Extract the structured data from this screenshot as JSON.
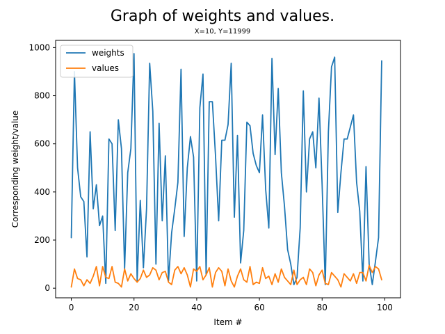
{
  "chart_data": {
    "type": "line",
    "title": "Graph of weights and values.",
    "subtitle": "X=10, Y=11999",
    "xlabel": "Item #",
    "ylabel": "Corresponding weight/value",
    "xlim": [
      -5,
      105
    ],
    "ylim": [
      -40,
      1030
    ],
    "xticks": [
      0,
      20,
      40,
      60,
      80,
      100
    ],
    "yticks": [
      0,
      200,
      400,
      600,
      800,
      1000
    ],
    "grid": false,
    "legend_position": "top-left",
    "series": [
      {
        "name": "weights",
        "color": "#1f77b4",
        "values": [
          210,
          900,
          500,
          380,
          360,
          130,
          650,
          330,
          430,
          260,
          300,
          20,
          620,
          600,
          240,
          700,
          580,
          80,
          480,
          580,
          975,
          30,
          365,
          85,
          330,
          935,
          735,
          100,
          685,
          280,
          550,
          30,
          230,
          330,
          440,
          910,
          215,
          500,
          630,
          545,
          30,
          750,
          890,
          55,
          775,
          775,
          550,
          280,
          615,
          615,
          680,
          935,
          295,
          635,
          105,
          240,
          690,
          675,
          560,
          510,
          480,
          720,
          410,
          250,
          955,
          555,
          830,
          480,
          340,
          160,
          100,
          15,
          45,
          250,
          820,
          400,
          620,
          650,
          500,
          790,
          430,
          15,
          650,
          920,
          960,
          315,
          480,
          620,
          620,
          670,
          720,
          440,
          320,
          30,
          505,
          100,
          15,
          110,
          210,
          945
        ]
      },
      {
        "name": "values",
        "color": "#ff7f0e",
        "values": [
          5,
          80,
          40,
          35,
          10,
          35,
          20,
          50,
          90,
          10,
          90,
          45,
          40,
          90,
          25,
          20,
          5,
          80,
          30,
          60,
          40,
          25,
          40,
          75,
          45,
          55,
          85,
          75,
          35,
          65,
          70,
          25,
          15,
          75,
          90,
          60,
          85,
          55,
          5,
          80,
          70,
          90,
          35,
          55,
          85,
          5,
          65,
          85,
          70,
          10,
          80,
          30,
          5,
          50,
          80,
          35,
          25,
          90,
          15,
          25,
          20,
          85,
          40,
          50,
          15,
          60,
          25,
          80,
          45,
          30,
          15,
          75,
          15,
          35,
          45,
          15,
          80,
          65,
          10,
          55,
          75,
          20,
          15,
          65,
          50,
          35,
          5,
          60,
          45,
          30,
          60,
          20,
          65,
          65,
          30,
          95,
          65,
          90,
          80,
          35
        ]
      }
    ]
  }
}
